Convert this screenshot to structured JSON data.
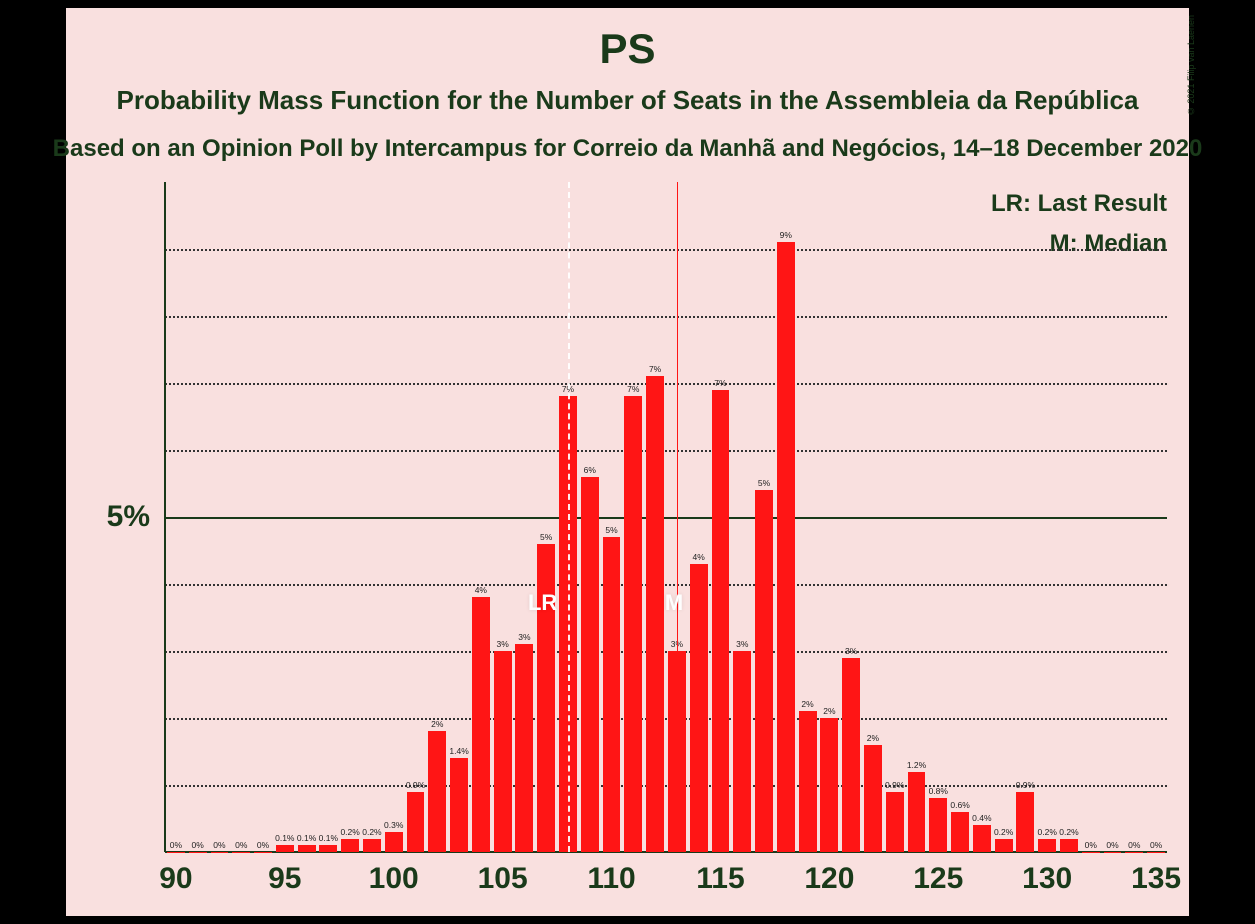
{
  "copyright": "© 2021 Filip van Laenen",
  "title": "PS",
  "subtitle": "Probability Mass Function for the Number of Seats in the Assembleia da República",
  "subtitle2": "Based on an Opinion Poll by Intercampus for Correio da Manhã and Negócios, 14–18 December 2020",
  "legend_lr": "LR: Last Result",
  "legend_m": "M: Median",
  "ylabel_5": "5%",
  "chart": {
    "type": "bar",
    "background_color": "#f9e0df",
    "bar_color": "#ff1515",
    "text_color": "#1a3a1a",
    "grid_color": "#333333",
    "xlim": [
      89.5,
      135.5
    ],
    "ylim": [
      0,
      10
    ],
    "ytick_major": 5,
    "ytick_minor": 1,
    "xtick_step": 5,
    "xtick_labels": [
      "90",
      "95",
      "100",
      "105",
      "110",
      "115",
      "120",
      "125",
      "130",
      "135"
    ],
    "lr_value": 108,
    "m_value": 113,
    "lr_marker": "LR",
    "m_marker": "M",
    "title_fontsize": 42,
    "subtitle_fontsize": 26,
    "axis_label_fontsize": 30,
    "barlabel_fontsize": 8.5,
    "bar_width_ratio": 0.82,
    "bars": [
      {
        "x": 90,
        "v": 0,
        "lbl": "0%"
      },
      {
        "x": 91,
        "v": 0,
        "lbl": "0%"
      },
      {
        "x": 92,
        "v": 0,
        "lbl": "0%"
      },
      {
        "x": 93,
        "v": 0,
        "lbl": "0%"
      },
      {
        "x": 94,
        "v": 0,
        "lbl": "0%"
      },
      {
        "x": 95,
        "v": 0.1,
        "lbl": "0.1%"
      },
      {
        "x": 96,
        "v": 0.1,
        "lbl": "0.1%"
      },
      {
        "x": 97,
        "v": 0.1,
        "lbl": "0.1%"
      },
      {
        "x": 98,
        "v": 0.2,
        "lbl": "0.2%"
      },
      {
        "x": 99,
        "v": 0.2,
        "lbl": "0.2%"
      },
      {
        "x": 100,
        "v": 0.3,
        "lbl": "0.3%"
      },
      {
        "x": 101,
        "v": 0.9,
        "lbl": "0.9%"
      },
      {
        "x": 102,
        "v": 1.8,
        "lbl": "2%"
      },
      {
        "x": 103,
        "v": 1.4,
        "lbl": "1.4%"
      },
      {
        "x": 104,
        "v": 3.8,
        "lbl": "4%"
      },
      {
        "x": 105,
        "v": 3.0,
        "lbl": "3%"
      },
      {
        "x": 106,
        "v": 3.1,
        "lbl": "3%"
      },
      {
        "x": 107,
        "v": 4.6,
        "lbl": "5%"
      },
      {
        "x": 108,
        "v": 6.8,
        "lbl": "7%"
      },
      {
        "x": 109,
        "v": 5.6,
        "lbl": "6%"
      },
      {
        "x": 110,
        "v": 4.7,
        "lbl": "5%"
      },
      {
        "x": 111,
        "v": 6.8,
        "lbl": "7%"
      },
      {
        "x": 112,
        "v": 7.1,
        "lbl": "7%"
      },
      {
        "x": 113,
        "v": 3.0,
        "lbl": "3%"
      },
      {
        "x": 114,
        "v": 4.3,
        "lbl": "4%"
      },
      {
        "x": 115,
        "v": 6.9,
        "lbl": "7%"
      },
      {
        "x": 116,
        "v": 3.0,
        "lbl": "3%"
      },
      {
        "x": 117,
        "v": 5.4,
        "lbl": "5%"
      },
      {
        "x": 118,
        "v": 9.1,
        "lbl": "9%"
      },
      {
        "x": 119,
        "v": 2.1,
        "lbl": "2%"
      },
      {
        "x": 120,
        "v": 2.0,
        "lbl": "2%"
      },
      {
        "x": 121,
        "v": 2.9,
        "lbl": "3%"
      },
      {
        "x": 122,
        "v": 1.6,
        "lbl": "2%"
      },
      {
        "x": 123,
        "v": 0.9,
        "lbl": "0.9%"
      },
      {
        "x": 124,
        "v": 1.2,
        "lbl": "1.2%"
      },
      {
        "x": 125,
        "v": 0.8,
        "lbl": "0.8%"
      },
      {
        "x": 126,
        "v": 0.6,
        "lbl": "0.6%"
      },
      {
        "x": 127,
        "v": 0.4,
        "lbl": "0.4%"
      },
      {
        "x": 128,
        "v": 0.2,
        "lbl": "0.2%"
      },
      {
        "x": 129,
        "v": 0.9,
        "lbl": "0.9%"
      },
      {
        "x": 130,
        "v": 0.2,
        "lbl": "0.2%"
      },
      {
        "x": 131,
        "v": 0.2,
        "lbl": "0.2%"
      },
      {
        "x": 132,
        "v": 0,
        "lbl": "0%"
      },
      {
        "x": 133,
        "v": 0,
        "lbl": "0%"
      },
      {
        "x": 134,
        "v": 0,
        "lbl": "0%"
      },
      {
        "x": 135,
        "v": 0,
        "lbl": "0%"
      }
    ]
  }
}
